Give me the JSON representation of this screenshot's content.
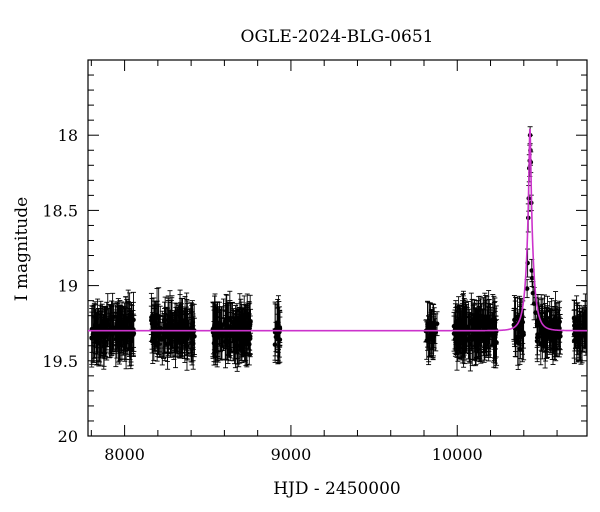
{
  "chart_data": {
    "type": "scatter",
    "title": "OGLE-2024-BLG-0651",
    "xlabel": "HJD - 2450000",
    "ylabel": "I magnitude",
    "xlim": [
      7780,
      10780
    ],
    "ylim": [
      20,
      17.5
    ],
    "y_inverted": true,
    "x_ticks": [
      8000,
      9000,
      10000
    ],
    "x_tick_labels": [
      "8000",
      "9000",
      "10000"
    ],
    "y_ticks": [
      18,
      18.5,
      19,
      19.5,
      20
    ],
    "y_tick_labels": [
      "18",
      "18.5",
      "19",
      "19.5",
      "20"
    ],
    "grid": false,
    "colors": {
      "points": "#000000",
      "model": "#cc33cc"
    },
    "baseline_mag": 19.3,
    "series": [
      {
        "kind": "points_with_errorbars",
        "seasons": [
          {
            "x_range": [
              7800,
              8060
            ],
            "n": 150,
            "err": 0.13
          },
          {
            "x_range": [
              8160,
              8420
            ],
            "n": 150,
            "err": 0.13
          },
          {
            "x_range": [
              8530,
              8760
            ],
            "n": 140,
            "err": 0.13
          },
          {
            "x_range": [
              8900,
              8935
            ],
            "n": 18,
            "err": 0.14
          },
          {
            "x_range": [
              9810,
              9880
            ],
            "n": 28,
            "err": 0.12
          },
          {
            "x_range": [
              9980,
              10240
            ],
            "n": 150,
            "err": 0.13
          },
          {
            "x_range": [
              10340,
              10400
            ],
            "n": 26,
            "err": 0.13
          },
          {
            "x_range": [
              10480,
              10620
            ],
            "n": 90,
            "err": 0.12
          },
          {
            "x_range": [
              10700,
              10780
            ],
            "n": 40,
            "err": 0.12
          }
        ],
        "event_points": [
          {
            "x": 10420,
            "y": 19.02
          },
          {
            "x": 10423,
            "y": 18.85
          },
          {
            "x": 10427,
            "y": 18.55
          },
          {
            "x": 10430,
            "y": 18.42
          },
          {
            "x": 10433,
            "y": 18.22
          },
          {
            "x": 10436,
            "y": 18.17
          },
          {
            "x": 10438,
            "y": 18.0
          },
          {
            "x": 10440,
            "y": 18.1
          },
          {
            "x": 10442,
            "y": 18.18
          },
          {
            "x": 10445,
            "y": 18.45
          },
          {
            "x": 10448,
            "y": 18.9
          },
          {
            "x": 10450,
            "y": 18.95
          },
          {
            "x": 10455,
            "y": 19.05
          },
          {
            "x": 10462,
            "y": 19.12
          },
          {
            "x": 10470,
            "y": 19.18
          }
        ]
      },
      {
        "kind": "model_line",
        "peak_x": 10437,
        "peak_mag": 17.95
      }
    ]
  }
}
